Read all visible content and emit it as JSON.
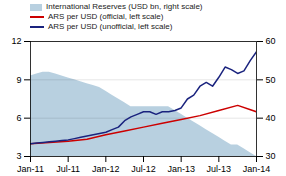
{
  "chart_data": {
    "type": "line",
    "xlim": [
      0,
      36
    ],
    "xticks": [
      {
        "value": 0,
        "label": "Jan-11"
      },
      {
        "value": 6,
        "label": "Jul-11"
      },
      {
        "value": 12,
        "label": "Jan-12"
      },
      {
        "value": 18,
        "label": "Jul-12"
      },
      {
        "value": 24,
        "label": "Jan-13"
      },
      {
        "value": 30,
        "label": "Jul-13"
      },
      {
        "value": 36,
        "label": "Jan-14"
      }
    ],
    "ylim": [
      3,
      12
    ],
    "yticks": [
      3,
      6,
      9,
      12
    ],
    "y2lim": [
      30,
      60
    ],
    "y2ticks": [
      30,
      40,
      50,
      60
    ],
    "grid": true,
    "legend": "top",
    "series": [
      {
        "name": "International Reserves (USD bn, right scale)",
        "type": "area",
        "axis": "y2",
        "color": "#b8d0e0",
        "x": [
          0,
          1,
          2,
          3,
          4,
          5,
          6,
          7,
          8,
          9,
          10,
          11,
          12,
          13,
          14,
          15,
          16,
          17,
          18,
          19,
          20,
          21,
          22,
          23,
          24,
          25,
          26,
          27,
          28,
          29,
          30,
          31,
          32,
          33,
          34,
          35,
          36
        ],
        "values": [
          51,
          51.5,
          52,
          52,
          51.5,
          51,
          50.5,
          50,
          49.5,
          49,
          48.5,
          48,
          47,
          46,
          45,
          44,
          43,
          43,
          43,
          43,
          43,
          43,
          43,
          42,
          41,
          40,
          39,
          38,
          37,
          36,
          35,
          34,
          33,
          33,
          32,
          31,
          30
        ]
      },
      {
        "name": "ARS per USD (official, left scale)",
        "type": "line",
        "color": "#cc0000",
        "x": [
          0,
          3,
          6,
          9,
          12,
          15,
          18,
          21,
          24,
          27,
          30,
          33,
          36
        ],
        "values": [
          4.0,
          4.1,
          4.2,
          4.35,
          4.7,
          5.0,
          5.3,
          5.6,
          5.9,
          6.2,
          6.6,
          7.0,
          6.5
        ]
      },
      {
        "name": "ARS per USD (unofficial, left scale)",
        "type": "line",
        "color": "#1a237e",
        "x": [
          0,
          1,
          2,
          3,
          4,
          5,
          6,
          7,
          8,
          9,
          10,
          11,
          12,
          13,
          14,
          15,
          16,
          17,
          18,
          19,
          20,
          21,
          22,
          23,
          24,
          25,
          26,
          27,
          28,
          29,
          30,
          31,
          32,
          33,
          34,
          35,
          36
        ],
        "values": [
          4.0,
          4.05,
          4.1,
          4.15,
          4.2,
          4.25,
          4.3,
          4.4,
          4.5,
          4.6,
          4.7,
          4.8,
          4.9,
          5.1,
          5.3,
          5.8,
          6.1,
          6.3,
          6.5,
          6.5,
          6.3,
          6.5,
          6.5,
          6.6,
          6.8,
          7.5,
          7.8,
          8.5,
          8.8,
          8.5,
          9.2,
          10.0,
          9.8,
          9.5,
          9.7,
          10.5,
          11.2
        ]
      }
    ]
  }
}
